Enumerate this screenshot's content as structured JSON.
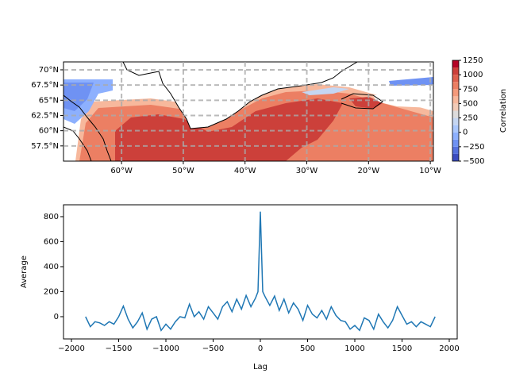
{
  "chart_data": [
    {
      "type": "map",
      "xlim": [
        -69.4,
        -9.5
      ],
      "ylim": [
        55.0,
        71.3
      ],
      "xticks": [
        {
          "value": -60,
          "label": "60°W"
        },
        {
          "value": -50,
          "label": "50°W"
        },
        {
          "value": -40,
          "label": "40°W"
        },
        {
          "value": -30,
          "label": "30°W"
        },
        {
          "value": -20,
          "label": "20°W"
        },
        {
          "value": -10,
          "label": "10°W"
        }
      ],
      "yticks": [
        {
          "value": 57.5,
          "label": "57.5°N"
        },
        {
          "value": 60,
          "label": "60°N"
        },
        {
          "value": 62.5,
          "label": "62.5°N"
        },
        {
          "value": 65,
          "label": "65°N"
        },
        {
          "value": 67.5,
          "label": "67.5°N"
        },
        {
          "value": 70,
          "label": "70°N"
        }
      ],
      "grid": true,
      "colorbar": {
        "label": "Correlation",
        "lim": [
          -500,
          1250
        ],
        "ticks": [
          {
            "value": -500,
            "label": "−500"
          },
          {
            "value": -250,
            "label": "−250"
          },
          0,
          250,
          500,
          750,
          1000,
          1250
        ],
        "levels": [
          -500,
          -375,
          -250,
          -125,
          0,
          125,
          250,
          375,
          500,
          625,
          750,
          875,
          1000,
          1125,
          1250
        ],
        "colors": [
          "#3b4cc0",
          "#5470de",
          "#6f92f3",
          "#8db0fe",
          "#aac7fd",
          "#c5d6f2",
          "#dddcdc",
          "#f2cbb7",
          "#f7b89c",
          "#f49a7b",
          "#ec7f63",
          "#de604d",
          "#cc403a",
          "#b40426"
        ]
      }
    },
    {
      "type": "line",
      "xlabel": "Lag",
      "ylabel": "Average",
      "xlim": [
        -2084,
        2084
      ],
      "ylim": [
        -178,
        895
      ],
      "xticks": [
        {
          "value": -2000,
          "label": "−2000"
        },
        {
          "value": -1500,
          "label": "−1500"
        },
        {
          "value": -1000,
          "label": "−1000"
        },
        {
          "value": -500,
          "label": "−500"
        },
        0,
        500,
        1000,
        1500,
        2000
      ],
      "yticks": [
        0,
        200,
        400,
        600,
        800
      ],
      "color": "#1f77b4",
      "x": [
        -1850,
        -1800,
        -1750,
        -1700,
        -1650,
        -1600,
        -1550,
        -1500,
        -1450,
        -1400,
        -1350,
        -1300,
        -1250,
        -1200,
        -1150,
        -1100,
        -1050,
        -1000,
        -950,
        -900,
        -850,
        -800,
        -750,
        -700,
        -650,
        -600,
        -550,
        -500,
        -450,
        -400,
        -350,
        -300,
        -250,
        -200,
        -150,
        -100,
        -50,
        -25,
        0,
        25,
        50,
        100,
        150,
        200,
        250,
        300,
        350,
        400,
        450,
        500,
        550,
        600,
        650,
        700,
        750,
        800,
        850,
        900,
        950,
        1000,
        1050,
        1100,
        1150,
        1200,
        1250,
        1300,
        1350,
        1400,
        1450,
        1500,
        1550,
        1600,
        1650,
        1700,
        1750,
        1800,
        1850
      ],
      "values": [
        0,
        -80,
        -40,
        -50,
        -70,
        -40,
        -60,
        0,
        85,
        -20,
        -90,
        -40,
        30,
        -100,
        -20,
        0,
        -110,
        -60,
        -100,
        -40,
        0,
        -10,
        100,
        0,
        40,
        -20,
        80,
        30,
        -20,
        80,
        120,
        40,
        140,
        60,
        170,
        80,
        150,
        200,
        840,
        200,
        160,
        90,
        165,
        50,
        140,
        30,
        110,
        60,
        -30,
        90,
        20,
        -10,
        50,
        -20,
        80,
        10,
        -30,
        -40,
        -100,
        -70,
        -110,
        -10,
        -30,
        -100,
        20,
        -40,
        -90,
        -30,
        80,
        10,
        -60,
        -40,
        -80,
        -40,
        -60,
        -80,
        0
      ]
    }
  ]
}
